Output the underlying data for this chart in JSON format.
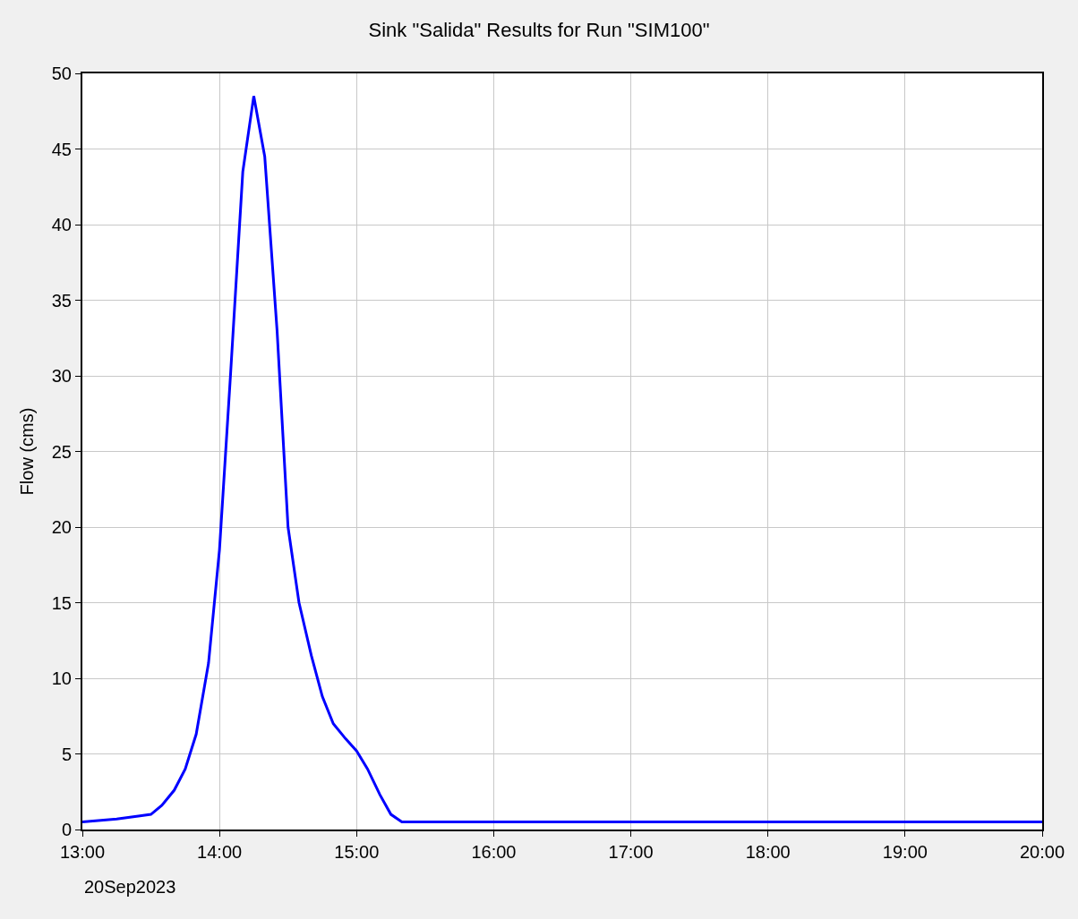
{
  "chart_data": {
    "type": "line",
    "title": "Sink \"Salida\" Results for Run \"SIM100\"",
    "ylabel": "Flow (cms)",
    "x": [
      13.0,
      13.25,
      13.42,
      13.5,
      13.58,
      13.67,
      13.75,
      13.83,
      13.92,
      14.0,
      14.08,
      14.17,
      14.25,
      14.33,
      14.42,
      14.5,
      14.58,
      14.67,
      14.75,
      14.83,
      14.92,
      15.0,
      15.08,
      15.17,
      15.25,
      15.33,
      15.42,
      16.0,
      17.0,
      18.0,
      19.0,
      20.0
    ],
    "series": [
      {
        "color": "#0000ff",
        "values": [
          0.5,
          0.7,
          0.9,
          1.0,
          1.6,
          2.6,
          4.0,
          6.3,
          11,
          18.5,
          30,
          43.5,
          48.5,
          44.5,
          33,
          20,
          15,
          11.5,
          8.8,
          7,
          6,
          5.2,
          4,
          2.3,
          1.0,
          0.5,
          0.5,
          0.5,
          0.5,
          0.5,
          0.5,
          0.5
        ]
      }
    ],
    "xlim": [
      13,
      20
    ],
    "xticks": [
      {
        "value": 13,
        "label": "13:00"
      },
      {
        "value": 14,
        "label": "14:00"
      },
      {
        "value": 15,
        "label": "15:00"
      },
      {
        "value": 16,
        "label": "16:00"
      },
      {
        "value": 17,
        "label": "17:00"
      },
      {
        "value": 18,
        "label": "18:00"
      },
      {
        "value": 19,
        "label": "19:00"
      },
      {
        "value": 20,
        "label": "20:00"
      }
    ],
    "ylim": [
      0,
      50
    ],
    "yticks": [
      0,
      5,
      10,
      15,
      20,
      25,
      30,
      35,
      40,
      45,
      50
    ],
    "grid": true,
    "marker": "none",
    "line_style": "solid",
    "annotations": [
      "20Sep2023"
    ]
  }
}
